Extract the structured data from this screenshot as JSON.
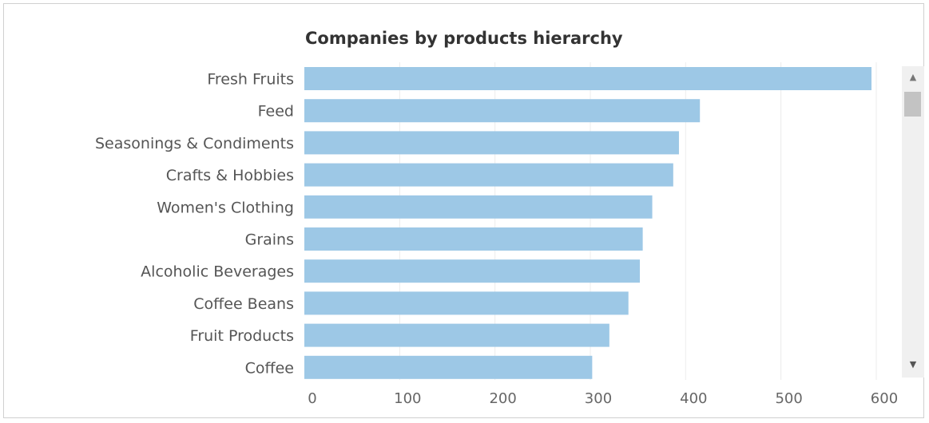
{
  "chart_data": {
    "type": "bar",
    "orientation": "horizontal",
    "title": "Companies by products hierarchy",
    "categories": [
      "Fresh Fruits",
      "Feed",
      "Seasonings & Condiments",
      "Crafts & Hobbies",
      "Women's Clothing",
      "Grains",
      "Alcoholic Beverages",
      "Coffee Beans",
      "Fruit Products",
      "Coffee"
    ],
    "values": [
      595,
      415,
      393,
      387,
      365,
      355,
      352,
      340,
      320,
      302
    ],
    "xlim": [
      0,
      630
    ],
    "xticks": [
      "0",
      "100",
      "200",
      "300",
      "400",
      "500",
      "600"
    ],
    "grid": "vertical",
    "bar_color": "#9dc8e6",
    "legend": "none"
  },
  "scrollbar": {
    "up_icon": "▲",
    "down_icon": "▼"
  }
}
